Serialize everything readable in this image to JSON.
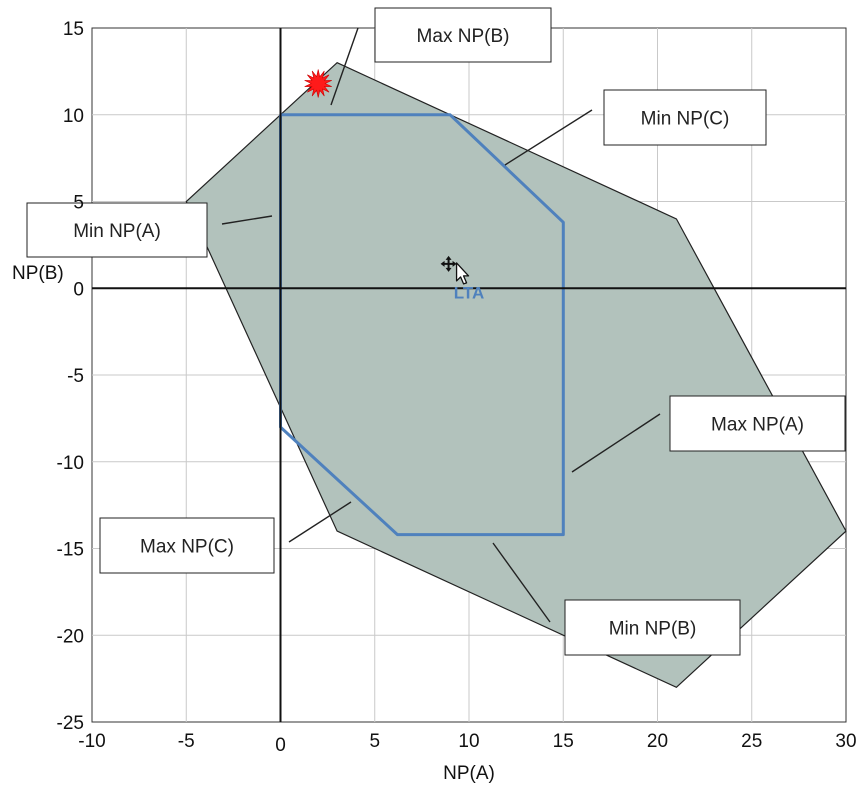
{
  "chart_data": {
    "type": "area",
    "title": "",
    "xlabel": "NP(A)",
    "ylabel": "NP(B)",
    "xlim": [
      -10,
      30
    ],
    "ylim": [
      -25,
      15
    ],
    "x_ticks": [
      -10,
      -5,
      0,
      5,
      10,
      15,
      20,
      25,
      30
    ],
    "y_ticks": [
      15,
      10,
      5,
      0,
      -5,
      -10,
      -15,
      -20,
      -25
    ],
    "x_zero_label": "0",
    "grid": true,
    "colors": {
      "region_fill": "#b2c2bc",
      "region_stroke": "#222222",
      "lta_boundary": "#4f81bd",
      "marker": "#ff1a1a"
    },
    "series": [
      {
        "role": "outer-region",
        "points": [
          [
            3,
            13
          ],
          [
            21,
            4
          ],
          [
            30,
            -14
          ],
          [
            21,
            -23
          ],
          [
            3,
            -14
          ],
          [
            -5,
            5
          ]
        ]
      },
      {
        "role": "lta-boundary",
        "points": [
          [
            0,
            10
          ],
          [
            9,
            10
          ],
          [
            15,
            3.8
          ],
          [
            15,
            -14.2
          ],
          [
            6.2,
            -14.2
          ],
          [
            0,
            -8
          ],
          [
            0,
            10
          ]
        ]
      }
    ],
    "marker": {
      "shape": "star",
      "x": 2,
      "y": 11.8
    },
    "cursor": {
      "x": 9.5,
      "y": 1
    },
    "center_label": {
      "text": "LTA",
      "x": 10,
      "y": -0.6
    },
    "callouts": [
      {
        "text": "Max NP(B)",
        "target": [
          3,
          10.7
        ]
      },
      {
        "text": "Min NP(C)",
        "target": [
          12.5,
          7
        ]
      },
      {
        "text": "Min NP(A)",
        "target": [
          -0.5,
          4.1
        ]
      },
      {
        "text": "Max NP(A)",
        "target": [
          15.5,
          -10.5
        ]
      },
      {
        "text": "Max NP(C)",
        "target": [
          3.8,
          -12.3
        ]
      },
      {
        "text": "Min NP(B)",
        "target": [
          11,
          -14.8
        ]
      }
    ]
  }
}
